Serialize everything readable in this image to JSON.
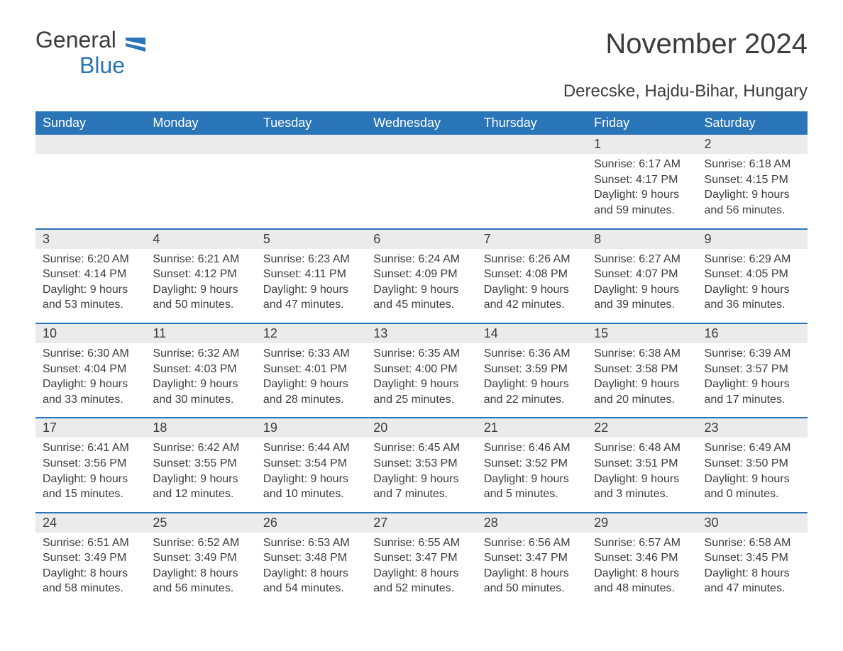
{
  "logo": {
    "part1": "General",
    "part2": "Blue",
    "color_text": "#3c3c3c",
    "color_blue": "#2a74b8"
  },
  "title": "November 2024",
  "location": "Derecske, Hajdu-Bihar, Hungary",
  "colors": {
    "header_bg": "#2a74b8",
    "header_fg": "#ffffff",
    "daynum_bg": "#ebebeb",
    "text": "#3c3c3c",
    "row_border": "#2a74b8",
    "page_bg": "#ffffff"
  },
  "typography": {
    "title_fontsize": 40,
    "location_fontsize": 24,
    "header_fontsize": 18,
    "daynum_fontsize": 18,
    "body_fontsize": 16
  },
  "layout": {
    "columns": 7,
    "rows": 5,
    "first_day_column_index": 5
  },
  "day_headers": [
    "Sunday",
    "Monday",
    "Tuesday",
    "Wednesday",
    "Thursday",
    "Friday",
    "Saturday"
  ],
  "weeks": [
    [
      null,
      null,
      null,
      null,
      null,
      {
        "day": "1",
        "sunrise": "Sunrise: 6:17 AM",
        "sunset": "Sunset: 4:17 PM",
        "daylight1": "Daylight: 9 hours",
        "daylight2": "and 59 minutes."
      },
      {
        "day": "2",
        "sunrise": "Sunrise: 6:18 AM",
        "sunset": "Sunset: 4:15 PM",
        "daylight1": "Daylight: 9 hours",
        "daylight2": "and 56 minutes."
      }
    ],
    [
      {
        "day": "3",
        "sunrise": "Sunrise: 6:20 AM",
        "sunset": "Sunset: 4:14 PM",
        "daylight1": "Daylight: 9 hours",
        "daylight2": "and 53 minutes."
      },
      {
        "day": "4",
        "sunrise": "Sunrise: 6:21 AM",
        "sunset": "Sunset: 4:12 PM",
        "daylight1": "Daylight: 9 hours",
        "daylight2": "and 50 minutes."
      },
      {
        "day": "5",
        "sunrise": "Sunrise: 6:23 AM",
        "sunset": "Sunset: 4:11 PM",
        "daylight1": "Daylight: 9 hours",
        "daylight2": "and 47 minutes."
      },
      {
        "day": "6",
        "sunrise": "Sunrise: 6:24 AM",
        "sunset": "Sunset: 4:09 PM",
        "daylight1": "Daylight: 9 hours",
        "daylight2": "and 45 minutes."
      },
      {
        "day": "7",
        "sunrise": "Sunrise: 6:26 AM",
        "sunset": "Sunset: 4:08 PM",
        "daylight1": "Daylight: 9 hours",
        "daylight2": "and 42 minutes."
      },
      {
        "day": "8",
        "sunrise": "Sunrise: 6:27 AM",
        "sunset": "Sunset: 4:07 PM",
        "daylight1": "Daylight: 9 hours",
        "daylight2": "and 39 minutes."
      },
      {
        "day": "9",
        "sunrise": "Sunrise: 6:29 AM",
        "sunset": "Sunset: 4:05 PM",
        "daylight1": "Daylight: 9 hours",
        "daylight2": "and 36 minutes."
      }
    ],
    [
      {
        "day": "10",
        "sunrise": "Sunrise: 6:30 AM",
        "sunset": "Sunset: 4:04 PM",
        "daylight1": "Daylight: 9 hours",
        "daylight2": "and 33 minutes."
      },
      {
        "day": "11",
        "sunrise": "Sunrise: 6:32 AM",
        "sunset": "Sunset: 4:03 PM",
        "daylight1": "Daylight: 9 hours",
        "daylight2": "and 30 minutes."
      },
      {
        "day": "12",
        "sunrise": "Sunrise: 6:33 AM",
        "sunset": "Sunset: 4:01 PM",
        "daylight1": "Daylight: 9 hours",
        "daylight2": "and 28 minutes."
      },
      {
        "day": "13",
        "sunrise": "Sunrise: 6:35 AM",
        "sunset": "Sunset: 4:00 PM",
        "daylight1": "Daylight: 9 hours",
        "daylight2": "and 25 minutes."
      },
      {
        "day": "14",
        "sunrise": "Sunrise: 6:36 AM",
        "sunset": "Sunset: 3:59 PM",
        "daylight1": "Daylight: 9 hours",
        "daylight2": "and 22 minutes."
      },
      {
        "day": "15",
        "sunrise": "Sunrise: 6:38 AM",
        "sunset": "Sunset: 3:58 PM",
        "daylight1": "Daylight: 9 hours",
        "daylight2": "and 20 minutes."
      },
      {
        "day": "16",
        "sunrise": "Sunrise: 6:39 AM",
        "sunset": "Sunset: 3:57 PM",
        "daylight1": "Daylight: 9 hours",
        "daylight2": "and 17 minutes."
      }
    ],
    [
      {
        "day": "17",
        "sunrise": "Sunrise: 6:41 AM",
        "sunset": "Sunset: 3:56 PM",
        "daylight1": "Daylight: 9 hours",
        "daylight2": "and 15 minutes."
      },
      {
        "day": "18",
        "sunrise": "Sunrise: 6:42 AM",
        "sunset": "Sunset: 3:55 PM",
        "daylight1": "Daylight: 9 hours",
        "daylight2": "and 12 minutes."
      },
      {
        "day": "19",
        "sunrise": "Sunrise: 6:44 AM",
        "sunset": "Sunset: 3:54 PM",
        "daylight1": "Daylight: 9 hours",
        "daylight2": "and 10 minutes."
      },
      {
        "day": "20",
        "sunrise": "Sunrise: 6:45 AM",
        "sunset": "Sunset: 3:53 PM",
        "daylight1": "Daylight: 9 hours",
        "daylight2": "and 7 minutes."
      },
      {
        "day": "21",
        "sunrise": "Sunrise: 6:46 AM",
        "sunset": "Sunset: 3:52 PM",
        "daylight1": "Daylight: 9 hours",
        "daylight2": "and 5 minutes."
      },
      {
        "day": "22",
        "sunrise": "Sunrise: 6:48 AM",
        "sunset": "Sunset: 3:51 PM",
        "daylight1": "Daylight: 9 hours",
        "daylight2": "and 3 minutes."
      },
      {
        "day": "23",
        "sunrise": "Sunrise: 6:49 AM",
        "sunset": "Sunset: 3:50 PM",
        "daylight1": "Daylight: 9 hours",
        "daylight2": "and 0 minutes."
      }
    ],
    [
      {
        "day": "24",
        "sunrise": "Sunrise: 6:51 AM",
        "sunset": "Sunset: 3:49 PM",
        "daylight1": "Daylight: 8 hours",
        "daylight2": "and 58 minutes."
      },
      {
        "day": "25",
        "sunrise": "Sunrise: 6:52 AM",
        "sunset": "Sunset: 3:49 PM",
        "daylight1": "Daylight: 8 hours",
        "daylight2": "and 56 minutes."
      },
      {
        "day": "26",
        "sunrise": "Sunrise: 6:53 AM",
        "sunset": "Sunset: 3:48 PM",
        "daylight1": "Daylight: 8 hours",
        "daylight2": "and 54 minutes."
      },
      {
        "day": "27",
        "sunrise": "Sunrise: 6:55 AM",
        "sunset": "Sunset: 3:47 PM",
        "daylight1": "Daylight: 8 hours",
        "daylight2": "and 52 minutes."
      },
      {
        "day": "28",
        "sunrise": "Sunrise: 6:56 AM",
        "sunset": "Sunset: 3:47 PM",
        "daylight1": "Daylight: 8 hours",
        "daylight2": "and 50 minutes."
      },
      {
        "day": "29",
        "sunrise": "Sunrise: 6:57 AM",
        "sunset": "Sunset: 3:46 PM",
        "daylight1": "Daylight: 8 hours",
        "daylight2": "and 48 minutes."
      },
      {
        "day": "30",
        "sunrise": "Sunrise: 6:58 AM",
        "sunset": "Sunset: 3:45 PM",
        "daylight1": "Daylight: 8 hours",
        "daylight2": "and 47 minutes."
      }
    ]
  ]
}
